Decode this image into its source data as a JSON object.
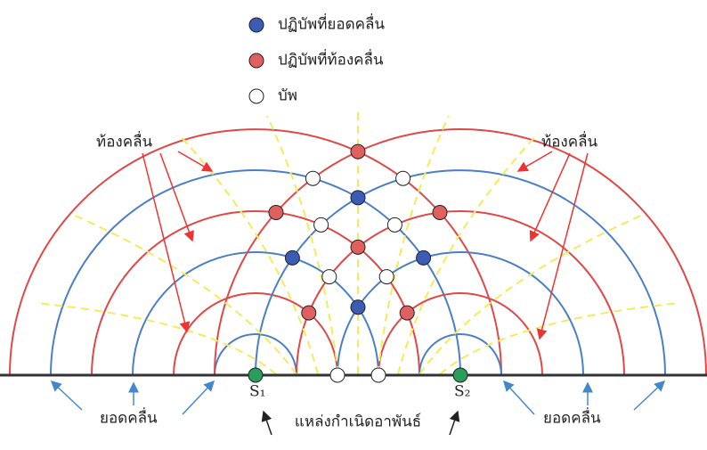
{
  "legend": [
    {
      "label": "ปฏิบัพที่ยอดคลื่น"
    },
    {
      "label": "ปฏิบัพที่ท้องคลื่น"
    },
    {
      "label": "บัพ"
    }
  ],
  "labels": {
    "trough_left": "ท้องคลื่น",
    "trough_right": "ท้องคลื่น",
    "crest_left": "ยอดคลื่น",
    "crest_right": "ยอดคลื่น",
    "sources": "แหล่งกำเนิดอาพันธ์"
  },
  "sources": [
    "S₁",
    "S₂"
  ]
}
